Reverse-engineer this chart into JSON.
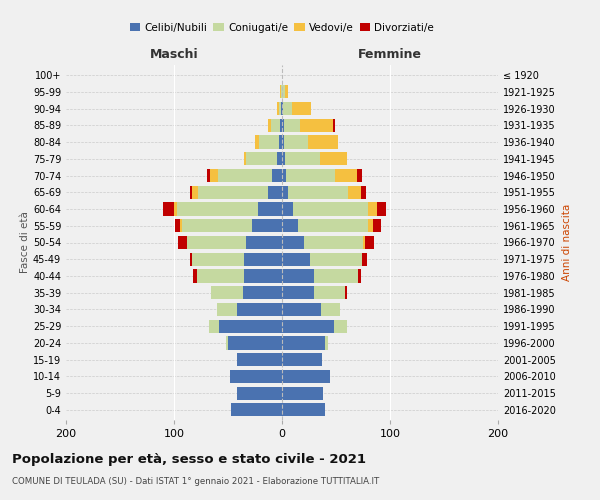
{
  "age_groups": [
    "0-4",
    "5-9",
    "10-14",
    "15-19",
    "20-24",
    "25-29",
    "30-34",
    "35-39",
    "40-44",
    "45-49",
    "50-54",
    "55-59",
    "60-64",
    "65-69",
    "70-74",
    "75-79",
    "80-84",
    "85-89",
    "90-94",
    "95-99",
    "100+"
  ],
  "birth_years": [
    "2016-2020",
    "2011-2015",
    "2006-2010",
    "2001-2005",
    "1996-2000",
    "1991-1995",
    "1986-1990",
    "1981-1985",
    "1976-1980",
    "1971-1975",
    "1966-1970",
    "1961-1965",
    "1956-1960",
    "1951-1955",
    "1946-1950",
    "1941-1945",
    "1936-1940",
    "1931-1935",
    "1926-1930",
    "1921-1925",
    "≤ 1920"
  ],
  "male": {
    "celibi": [
      47,
      42,
      48,
      42,
      50,
      58,
      42,
      36,
      35,
      35,
      33,
      28,
      22,
      13,
      9,
      5,
      3,
      2,
      1,
      0,
      0
    ],
    "coniugati": [
      0,
      0,
      0,
      0,
      2,
      10,
      18,
      30,
      44,
      48,
      55,
      65,
      75,
      65,
      50,
      28,
      18,
      8,
      2,
      1,
      0
    ],
    "vedovi": [
      0,
      0,
      0,
      0,
      0,
      0,
      0,
      0,
      0,
      0,
      0,
      1,
      3,
      5,
      8,
      2,
      4,
      3,
      2,
      1,
      0
    ],
    "divorziati": [
      0,
      0,
      0,
      0,
      0,
      0,
      0,
      0,
      3,
      2,
      8,
      5,
      10,
      2,
      2,
      0,
      0,
      0,
      0,
      0,
      0
    ]
  },
  "female": {
    "nubili": [
      40,
      38,
      44,
      37,
      40,
      48,
      36,
      30,
      30,
      26,
      20,
      15,
      10,
      6,
      4,
      3,
      2,
      2,
      1,
      0,
      0
    ],
    "coniugate": [
      0,
      0,
      0,
      0,
      3,
      12,
      18,
      28,
      40,
      48,
      55,
      65,
      70,
      55,
      45,
      32,
      22,
      15,
      8,
      3,
      0
    ],
    "vedove": [
      0,
      0,
      0,
      0,
      0,
      0,
      0,
      0,
      0,
      0,
      2,
      4,
      8,
      12,
      20,
      25,
      28,
      30,
      18,
      3,
      0
    ],
    "divorziate": [
      0,
      0,
      0,
      0,
      0,
      0,
      0,
      2,
      3,
      5,
      8,
      8,
      8,
      5,
      5,
      0,
      0,
      2,
      0,
      0,
      0
    ]
  },
  "colors": {
    "celibi": "#4a72b0",
    "coniugati": "#c5d9a0",
    "vedovi": "#f5c040",
    "divorziati": "#c00000"
  },
  "xlim": 200,
  "title": "Popolazione per età, sesso e stato civile - 2021",
  "subtitle": "COMUNE DI TEULADA (SU) - Dati ISTAT 1° gennaio 2021 - Elaborazione TUTTITALIA.IT",
  "ylabel_left": "Fasce di età",
  "ylabel_right": "Anni di nascita",
  "xlabel_male": "Maschi",
  "xlabel_female": "Femmine",
  "legend_labels": [
    "Celibi/Nubili",
    "Coniugati/e",
    "Vedovi/e",
    "Divorziati/e"
  ],
  "bg_color": "#f0f0f0"
}
